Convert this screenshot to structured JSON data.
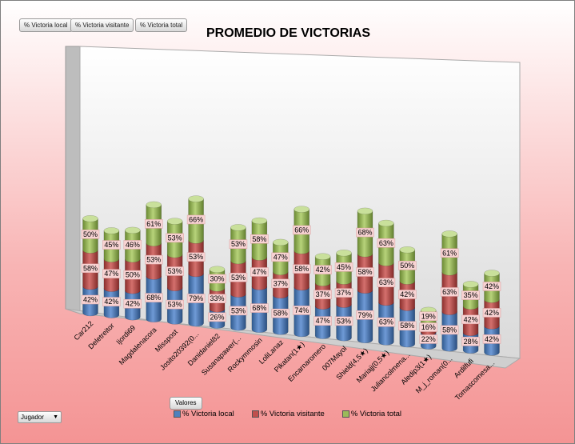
{
  "field_buttons": [
    "% Victoria local",
    "% Victoria visitante",
    "% Victoria total"
  ],
  "values_button": "Valores",
  "axis_field_button": "Jugador",
  "chart_data": {
    "type": "bar",
    "stacked": true,
    "three_d": true,
    "title": "PROMEDIO DE VICTORIAS",
    "legend_position": "bottom",
    "categories": [
      "Car212",
      "Deletreitor",
      "Ijordi69",
      "Magdalenacora",
      "Misspost",
      "Josito20392(0...",
      "Danidaniel82",
      "Susanapawer(...",
      "Rockymmosin",
      "LoliLanaz",
      "Pikatan(1★)",
      "Encarnaromero",
      "007Mayol",
      "Shield(4,5★)",
      "Mariajj(0,5★)",
      "Juliancolmena...",
      "Aledip3(1★)",
      "M_j_roman(0...",
      "Ardilfufi",
      "Tomascomesa..."
    ],
    "series": [
      {
        "name": "% Victoria local",
        "color": "#4f81bd",
        "values": [
          42,
          42,
          42,
          68,
          53,
          79,
          26,
          53,
          68,
          58,
          74,
          47,
          53,
          79,
          63,
          58,
          22,
          58,
          28,
          42
        ],
        "labels": [
          "42%",
          "42%",
          "42%",
          "68%",
          "53%",
          "79%",
          "26%",
          "53%",
          "68%",
          "58%",
          "74%",
          "47%",
          "53%",
          "79%",
          "63%",
          "58%",
          "22%",
          "58%",
          "28%",
          "42%"
        ]
      },
      {
        "name": "% Victoria visitante",
        "color": "#c0504d",
        "values": [
          58,
          47,
          50,
          53,
          53,
          53,
          33,
          53,
          47,
          37,
          58,
          37,
          37,
          58,
          63,
          42,
          16,
          63,
          42,
          42
        ],
        "labels": [
          "58%",
          "47%",
          "50%",
          "53%",
          "53%",
          "53%",
          "33%",
          "53%",
          "47%",
          "37%",
          "58%",
          "37%",
          "37%",
          "58%",
          "63%",
          "42%",
          "16%",
          "63%",
          "42%",
          "42%"
        ]
      },
      {
        "name": "% Victoria total",
        "color": "#9bbb59",
        "values": [
          50,
          45,
          46,
          61,
          53,
          66,
          30,
          53,
          58,
          47,
          66,
          42,
          45,
          68,
          63,
          50,
          19,
          61,
          35,
          42
        ],
        "labels": [
          "50%",
          "45%",
          "46%",
          "61%",
          "53%",
          "66%",
          "30%",
          "53%",
          "58%",
          "47%",
          "66%",
          "42%",
          "45%",
          "68%",
          "63%",
          "50%",
          "19%",
          "61%",
          "35%",
          "42%"
        ]
      }
    ]
  }
}
